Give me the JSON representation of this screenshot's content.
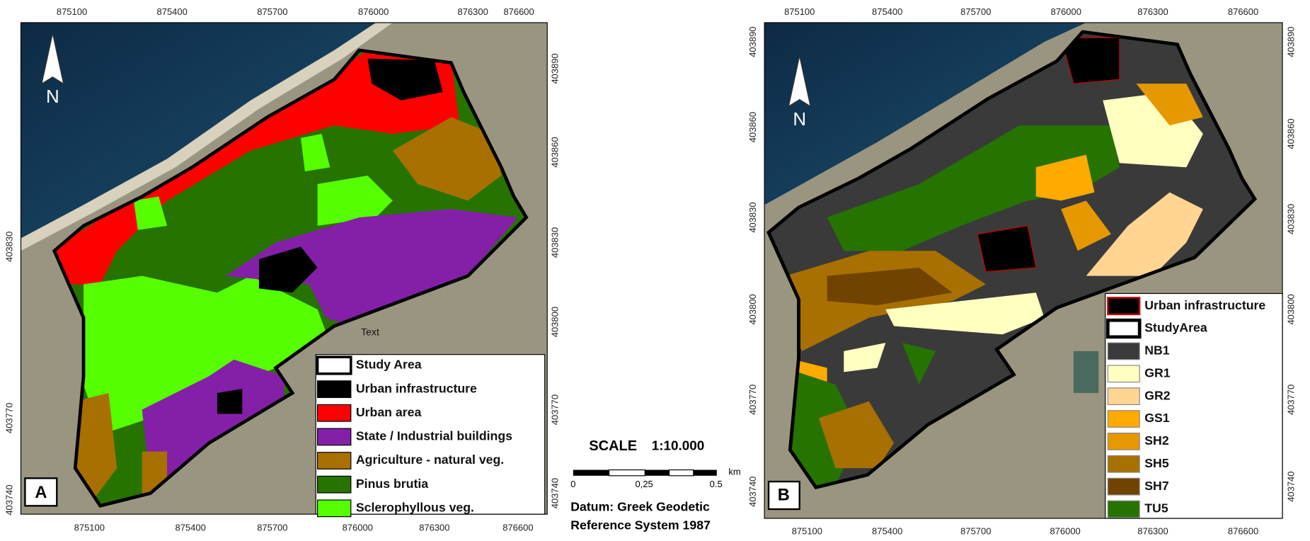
{
  "north_label": "N",
  "panels": [
    {
      "label": "A",
      "top_ticks": [
        "875100",
        "875400",
        "875700",
        "876000",
        "876300",
        "876600"
      ],
      "bottom_ticks": [
        "875100",
        "875400",
        "875700",
        "876000",
        "876300",
        "876600"
      ],
      "left_ticks": [
        "403830",
        "403770",
        "403740"
      ],
      "right_ticks": [
        "403890",
        "403860",
        "403830",
        "403800",
        "403770",
        "403740"
      ],
      "legend": [
        {
          "name": "Study Area",
          "color": "#ffffff"
        },
        {
          "name": "Urban infrastructure",
          "color": "#000000"
        },
        {
          "name": "Urban area",
          "color": "#ff0000"
        },
        {
          "name": "State / Industrial buildings",
          "color": "#8420a8"
        },
        {
          "name": "Agriculture - natural veg.",
          "color": "#a87000"
        },
        {
          "name": "Pinus brutia",
          "color": "#267300"
        },
        {
          "name": "Sclerophyllous veg.",
          "color": "#55ff00"
        }
      ],
      "annotation": "Text"
    },
    {
      "label": "B",
      "top_ticks": [
        "875100",
        "875400",
        "875700",
        "876000",
        "876300",
        "876600"
      ],
      "bottom_ticks": [
        "875100",
        "875400",
        "875700",
        "876000",
        "876300",
        "876600"
      ],
      "left_ticks": [
        "403890",
        "403860",
        "403830",
        "403800",
        "403770",
        "403740"
      ],
      "right_ticks": [
        "403890",
        "403860",
        "403830",
        "403800",
        "403770",
        "403740"
      ],
      "legend": [
        {
          "name": "Urban infrastructure",
          "color": "#000000"
        },
        {
          "name": "StudyArea",
          "color": "#ffffff"
        },
        {
          "name": "NB1",
          "color": "#3a3a3a"
        },
        {
          "name": "GR1",
          "color": "#ffffc0"
        },
        {
          "name": "GR2",
          "color": "#ffd591"
        },
        {
          "name": "GS1",
          "color": "#ffaa00"
        },
        {
          "name": "SH2",
          "color": "#e69800"
        },
        {
          "name": "SH5",
          "color": "#a87000"
        },
        {
          "name": "SH7",
          "color": "#704400"
        },
        {
          "name": "TU5",
          "color": "#267300"
        }
      ]
    }
  ],
  "scale": {
    "title": "SCALE",
    "ratio": "1:10.000",
    "ticks": [
      "0",
      "0,25",
      "0.5"
    ],
    "unit": "km"
  },
  "datum": [
    "Datum: Greek Geodetic",
    "Reference System 1987"
  ]
}
